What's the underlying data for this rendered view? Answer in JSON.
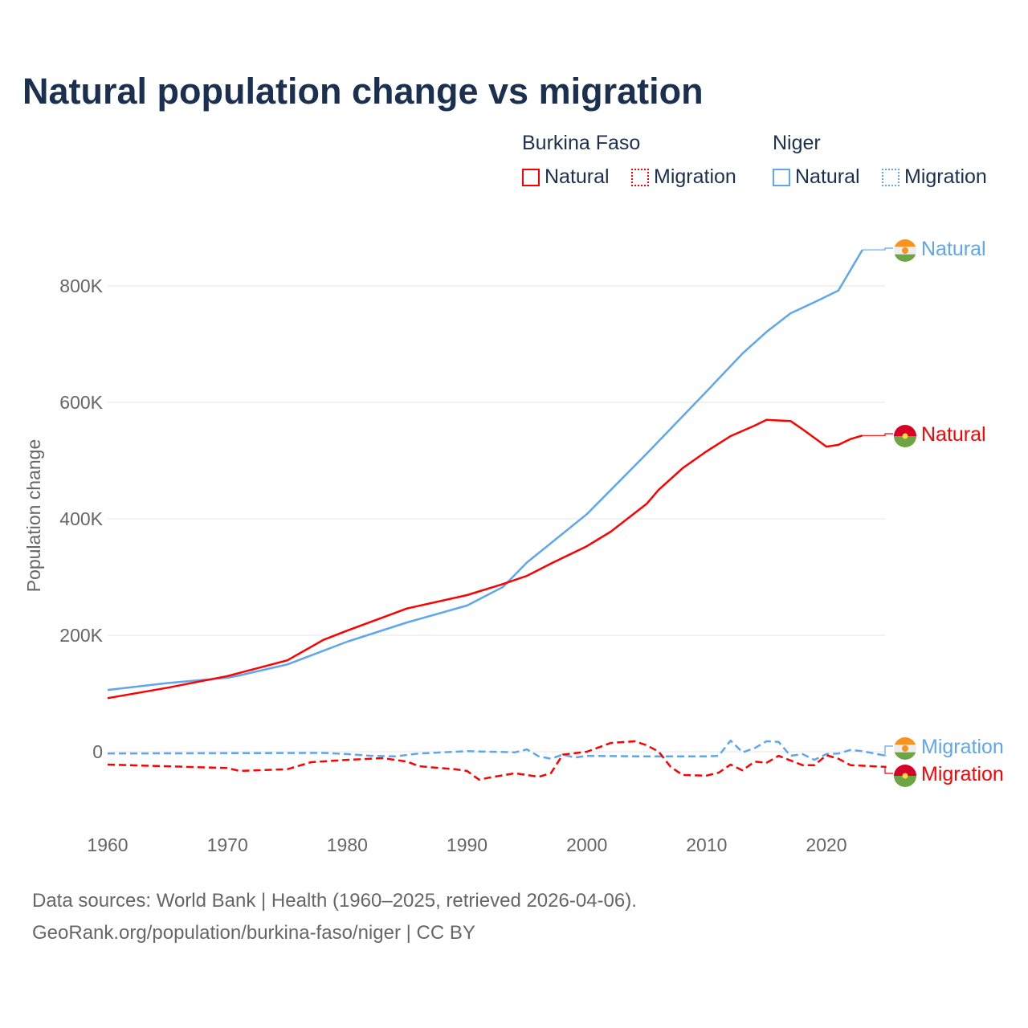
{
  "title": "Natural population change vs migration",
  "legend": {
    "groups": [
      {
        "name": "Burkina Faso",
        "items": [
          "Natural",
          "Migration"
        ]
      },
      {
        "name": "Niger",
        "items": [
          "Natural",
          "Migration"
        ]
      }
    ]
  },
  "footer": {
    "line1": "Data sources: World Bank | Health (1960–2025, retrieved 2026-04-06).",
    "line2": "GeoRank.org/population/burkina-faso/niger | CC BY"
  },
  "chart_data": {
    "type": "line",
    "title": "Natural population change vs migration",
    "xlabel": "",
    "ylabel": "Population change",
    "xlim": [
      1960,
      2025
    ],
    "ylim": [
      -100000,
      900000
    ],
    "xticks": [
      1960,
      1970,
      1980,
      1990,
      2000,
      2010,
      2020
    ],
    "xtick_labels": [
      "1960",
      "1970",
      "1980",
      "1990",
      "2000",
      "2010",
      "2020"
    ],
    "yticks": [
      0,
      200000,
      400000,
      600000,
      800000
    ],
    "ytick_labels": [
      "0",
      "200K",
      "400K",
      "600K",
      "800K"
    ],
    "grid": true,
    "series": [
      {
        "name": "Niger Natural",
        "country": "Niger",
        "kind": "Natural",
        "color": "#5ea6ee",
        "dash": false,
        "end_label": "Natural",
        "x": [
          1960,
          1965,
          1970,
          1971,
          1975,
          1980,
          1985,
          1990,
          1993,
          1995,
          2000,
          2005,
          2010,
          2013,
          2015,
          2017,
          2019,
          2021,
          2023
        ],
        "y": [
          106000,
          118000,
          127000,
          131000,
          150000,
          189000,
          222000,
          251000,
          283000,
          325000,
          408000,
          512000,
          619000,
          684000,
          721000,
          753000,
          772000,
          792000,
          862000
        ]
      },
      {
        "name": "Burkina Faso Natural",
        "country": "Burkina Faso",
        "kind": "Natural",
        "color": "#ff0000",
        "dash": false,
        "end_label": "Natural",
        "x": [
          1960,
          1965,
          1970,
          1975,
          1978,
          1980,
          1985,
          1990,
          1993,
          1995,
          1997,
          2000,
          2002,
          2005,
          2006,
          2008,
          2010,
          2012,
          2014,
          2015,
          2017,
          2018,
          2020,
          2021,
          2022,
          2023
        ],
        "y": [
          92000,
          110000,
          130000,
          157000,
          192000,
          208000,
          246000,
          269000,
          288000,
          302000,
          323000,
          353000,
          378000,
          426000,
          450000,
          487000,
          516000,
          542000,
          560000,
          570000,
          568000,
          554000,
          524000,
          527000,
          537000,
          543000
        ]
      },
      {
        "name": "Niger Migration",
        "country": "Niger",
        "kind": "Migration",
        "color": "#5ea6ee",
        "dash": true,
        "end_label": "Migration",
        "x": [
          1960,
          1978,
          1980,
          1982,
          1984,
          1986,
          1990,
          1994,
          1995,
          1996,
          1997,
          1998,
          1999,
          2000,
          2005,
          2010,
          2011,
          2012,
          2013,
          2014,
          2015,
          2016,
          2017,
          2018,
          2019,
          2020,
          2021,
          2022,
          2023,
          2025
        ],
        "y": [
          -3000,
          -2000,
          -4000,
          -7000,
          -8000,
          -3000,
          1000,
          -1000,
          4000,
          -8000,
          -12000,
          -5000,
          -10000,
          -7000,
          -8000,
          -8000,
          -7000,
          19000,
          -1000,
          6000,
          18000,
          17000,
          -7000,
          -4000,
          -14000,
          -4000,
          -3000,
          3000,
          1000,
          -7000
        ]
      },
      {
        "name": "Burkina Faso Migration",
        "country": "Burkina Faso",
        "kind": "Migration",
        "color": "#ff0000",
        "dash": true,
        "end_label": "Migration",
        "x": [
          1960,
          1970,
          1971,
          1975,
          1977,
          1980,
          1983,
          1985,
          1986,
          1989,
          1990,
          1991,
          1992,
          1994,
          1996,
          1997,
          1998,
          2000,
          2002,
          2004,
          2005,
          2006,
          2007,
          2008,
          2010,
          2011,
          2012,
          2013,
          2014,
          2015,
          2016,
          2018,
          2019,
          2020,
          2021,
          2022,
          2025
        ],
        "y": [
          -22000,
          -28000,
          -33000,
          -30000,
          -18000,
          -14000,
          -11000,
          -17000,
          -25000,
          -30000,
          -33000,
          -48000,
          -44000,
          -37000,
          -43000,
          -37000,
          -5000,
          0,
          15000,
          18000,
          11000,
          0,
          -26000,
          -40000,
          -41000,
          -36000,
          -22000,
          -32000,
          -17000,
          -19000,
          -7000,
          -23000,
          -23000,
          -6000,
          -12000,
          -23000,
          -26000
        ]
      }
    ]
  }
}
